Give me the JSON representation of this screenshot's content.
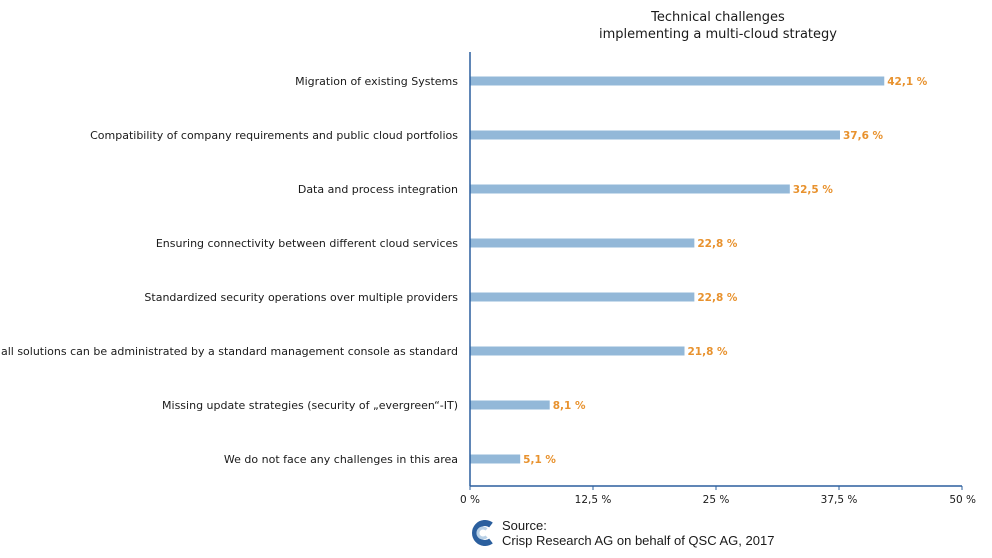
{
  "chart_data": {
    "type": "bar",
    "orientation": "horizontal",
    "title": [
      "Technical challenges",
      "implementing a multi-cloud strategy"
    ],
    "categories": [
      "Migration of existing Systems",
      "Compatibility of company requirements and public cloud portfolios",
      "Data and process integration",
      "Ensuring connectivity between different cloud services",
      "Standardized security operations over multiple providers",
      "Not all solutions can be administrated by a standard management console as standard",
      "Missing update strategies (security of „evergreen“-IT)",
      "We do not face any challenges in this area"
    ],
    "values": [
      42.1,
      37.6,
      32.5,
      22.8,
      22.8,
      21.8,
      8.1,
      5.1
    ],
    "value_labels": [
      "42,1 %",
      "37,6 %",
      "32,5 %",
      "22,8 %",
      "22,8 %",
      "21,8 %",
      "8,1 %",
      "5,1 %"
    ],
    "xlim": [
      0,
      50
    ],
    "xticks": [
      0,
      12.5,
      25,
      37.5,
      50
    ],
    "xtick_labels": [
      "0 %",
      "12,5 %",
      "25 %",
      "37,5 %",
      "50 %"
    ],
    "grid": false,
    "colors": {
      "bar": "#93b8d8",
      "value_label": "#e8922e",
      "axis": "#2b5f9e"
    }
  },
  "source": {
    "label": "Source:",
    "text": "Crisp Research AG on behalf of QSC AG, 2017",
    "logo_icon": "crisp-research-logo-icon"
  }
}
